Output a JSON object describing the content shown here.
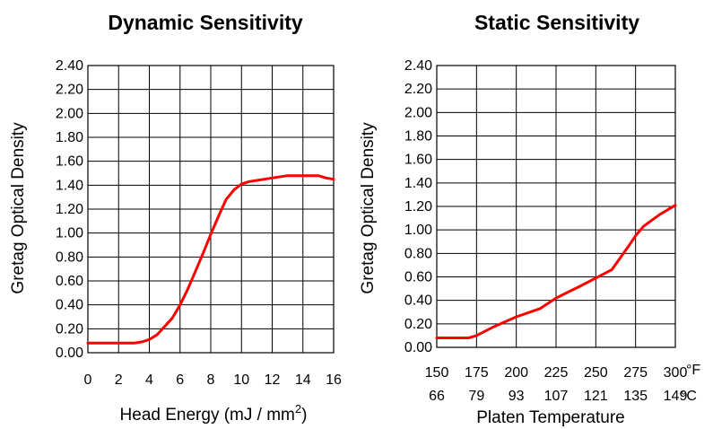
{
  "chart_data": [
    {
      "type": "line",
      "title": "Dynamic Sensitivity",
      "ylabel": "Gretag Optical Density",
      "xlabel": "Head Energy (mJ / mm",
      "xlabel_superscript": "2",
      "xlabel_suffix": ")",
      "xlim": [
        0,
        16
      ],
      "ylim": [
        0,
        2.4
      ],
      "grid": true,
      "x_ticks": [
        "0",
        "2",
        "4",
        "6",
        "8",
        "10",
        "12",
        "14",
        "16"
      ],
      "y_ticks": [
        "0.00",
        "0.20",
        "0.40",
        "0.60",
        "0.80",
        "1.00",
        "1.20",
        "1.40",
        "1.60",
        "1.80",
        "2.00",
        "2.20",
        "2.40"
      ],
      "series": [
        {
          "color": "#ff0000",
          "x": [
            0,
            1,
            2,
            3,
            3.5,
            4,
            4.5,
            5,
            5.5,
            6,
            6.5,
            7,
            7.5,
            8,
            8.5,
            9,
            9.5,
            10,
            10.5,
            11,
            12,
            13,
            14,
            15,
            15.5,
            16
          ],
          "y": [
            0.08,
            0.08,
            0.08,
            0.08,
            0.09,
            0.11,
            0.15,
            0.22,
            0.29,
            0.4,
            0.53,
            0.68,
            0.83,
            0.99,
            1.14,
            1.28,
            1.36,
            1.41,
            1.43,
            1.44,
            1.46,
            1.48,
            1.48,
            1.48,
            1.46,
            1.45
          ]
        }
      ]
    },
    {
      "type": "line",
      "title": "Static Sensitivity",
      "ylabel": "Gretag Optical Density",
      "xlabel": "Platen Temperature",
      "xlim": [
        150,
        300
      ],
      "ylim": [
        0,
        2.4
      ],
      "grid": true,
      "x_ticks_f": [
        "150",
        "175",
        "200",
        "225",
        "250",
        "275",
        "300"
      ],
      "x_ticks_c": [
        "66",
        "79",
        "93",
        "107",
        "121",
        "135",
        "149"
      ],
      "unit_f": "°F",
      "unit_c": "°C",
      "y_ticks": [
        "0.00",
        "0.20",
        "0.40",
        "0.60",
        "0.80",
        "1.00",
        "1.20",
        "1.40",
        "1.60",
        "1.80",
        "2.00",
        "2.20",
        "2.40"
      ],
      "series": [
        {
          "color": "#ff0000",
          "x": [
            150,
            160,
            170,
            175,
            185,
            200,
            215,
            225,
            240,
            250,
            260,
            270,
            275,
            280,
            290,
            300
          ],
          "y": [
            0.08,
            0.08,
            0.08,
            0.1,
            0.17,
            0.26,
            0.33,
            0.42,
            0.52,
            0.59,
            0.66,
            0.85,
            0.95,
            1.03,
            1.13,
            1.21
          ]
        }
      ]
    }
  ]
}
